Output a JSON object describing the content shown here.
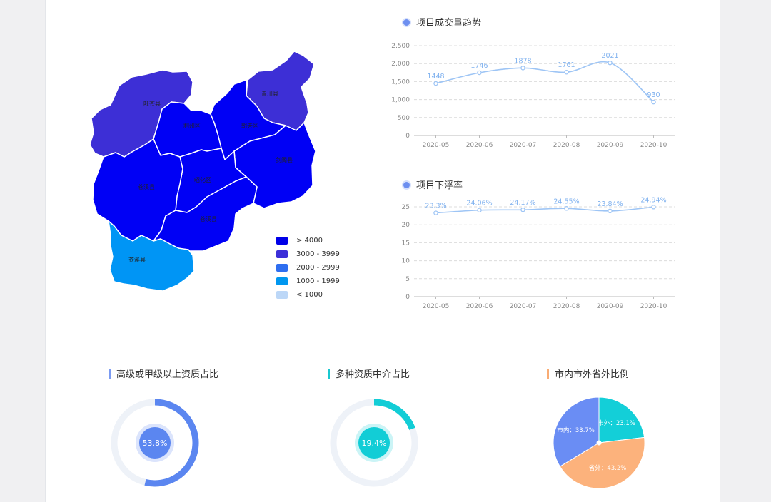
{
  "colors": {
    "line_stroke": "#9ec5f5",
    "line_label": "#7fb1ef",
    "axis_text": "#888888"
  },
  "map": {
    "regions": [
      {
        "id": "r1",
        "name": "旺苍县",
        "color": "#3d2fd6"
      },
      {
        "id": "r2",
        "name": "青川县",
        "color": "#3d2fd6"
      },
      {
        "id": "r3",
        "name": "朝天区",
        "color": "#0000f5"
      },
      {
        "id": "r4",
        "name": "利州区",
        "color": "#0000f5"
      },
      {
        "id": "r5",
        "name": "剑阁县",
        "color": "#0000f5"
      },
      {
        "id": "r6",
        "name": "昭化区",
        "color": "#0000f5"
      },
      {
        "id": "r7",
        "name": "苍溪县",
        "color": "#0000f5"
      },
      {
        "id": "r8",
        "name": "苍溪县",
        "color": "#0000f5"
      },
      {
        "id": "r9",
        "name": "苍溪县",
        "color": "#0095f5"
      }
    ],
    "legend": [
      {
        "label": "> 4000",
        "color": "#0000e8"
      },
      {
        "label": "3000 - 3999",
        "color": "#3c2fd8"
      },
      {
        "label": "2000 - 2999",
        "color": "#2e6ef0"
      },
      {
        "label": "1000 - 1999",
        "color": "#0097f0"
      },
      {
        "label": "< 1000",
        "color": "#bcd7f7"
      }
    ]
  },
  "chart_data": [
    {
      "type": "line",
      "title": "项目成交量趋势",
      "categories": [
        "2020-05",
        "2020-06",
        "2020-07",
        "2020-08",
        "2020-09",
        "2020-10"
      ],
      "values": [
        1448,
        1746,
        1878,
        1761,
        2021,
        930
      ],
      "value_labels": [
        "1448",
        "1746",
        "1878",
        "1761",
        "2021",
        "930"
      ],
      "ylim": [
        0,
        2500
      ],
      "yticks": [
        0,
        500,
        1000,
        1500,
        2000,
        2500
      ],
      "ytick_labels": [
        "0",
        "500",
        "1,000",
        "1,500",
        "2,000",
        "2,500"
      ],
      "grid": true
    },
    {
      "type": "line",
      "title": "项目下浮率",
      "categories": [
        "2020-05",
        "2020-06",
        "2020-07",
        "2020-08",
        "2020-09",
        "2020-10"
      ],
      "values": [
        23.3,
        24.06,
        24.17,
        24.55,
        23.84,
        24.94
      ],
      "value_labels": [
        "23.3%",
        "24.06%",
        "24.17%",
        "24.55%",
        "23.84%",
        "24.94%"
      ],
      "ylim": [
        0,
        25
      ],
      "yticks": [
        0,
        5,
        10,
        15,
        20,
        25
      ],
      "ytick_labels": [
        "0",
        "5",
        "10",
        "15",
        "20",
        "25"
      ],
      "grid": true
    },
    {
      "type": "pie",
      "title": "高级或甲级以上资质占比",
      "value_percent": 53.8,
      "center_label": "53.8%",
      "color": "#5b86f0",
      "bar_color": "#7b9bf2"
    },
    {
      "type": "pie",
      "title": "多种资质中介占比",
      "value_percent": 19.4,
      "center_label": "19.4%",
      "color": "#12cdd6",
      "bar_color": "#19c8d0"
    },
    {
      "type": "pie",
      "title": "市内市外省外比例",
      "bar_color": "#f9ac74",
      "slices": [
        {
          "name": "市外",
          "value": 23.1,
          "label": "市外：23.1%",
          "color": "#13cfd8"
        },
        {
          "name": "省外",
          "value": 43.2,
          "label": "省外：43.2%",
          "color": "#fcb27c"
        },
        {
          "name": "市内",
          "value": 33.7,
          "label": "市内：33.7%",
          "color": "#6a8df4"
        }
      ]
    }
  ]
}
